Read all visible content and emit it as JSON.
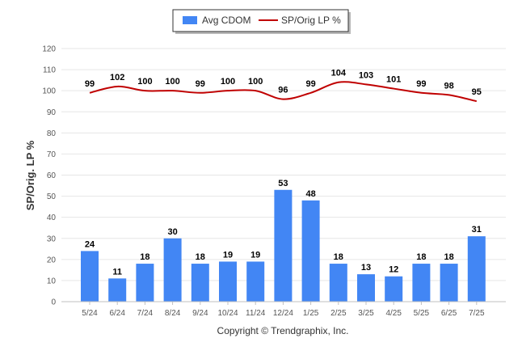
{
  "chart_data": {
    "type": "bar",
    "categories": [
      "5/24",
      "6/24",
      "7/24",
      "8/24",
      "9/24",
      "10/24",
      "11/24",
      "12/24",
      "1/25",
      "2/25",
      "3/25",
      "4/25",
      "5/25",
      "6/25",
      "7/25"
    ],
    "series": [
      {
        "name": "Avg CDOM",
        "type": "bar",
        "color": "#4286f4",
        "values": [
          24,
          11,
          18,
          30,
          18,
          19,
          19,
          53,
          48,
          18,
          13,
          12,
          18,
          18,
          31
        ]
      },
      {
        "name": "SP/Orig LP %",
        "type": "line",
        "color": "#c00000",
        "values": [
          99,
          102,
          100,
          100,
          99,
          100,
          100,
          96,
          99,
          104,
          103,
          101,
          99,
          98,
          95
        ]
      }
    ],
    "ylabel": "SP/Orig. LP %",
    "ylim": [
      0,
      120
    ],
    "yticks": [
      0,
      10,
      20,
      30,
      40,
      50,
      60,
      70,
      80,
      90,
      100,
      110,
      120
    ],
    "grid": true,
    "legend": "top-center"
  },
  "footer": {
    "copyright": "Copyright © Trendgraphix, Inc."
  }
}
